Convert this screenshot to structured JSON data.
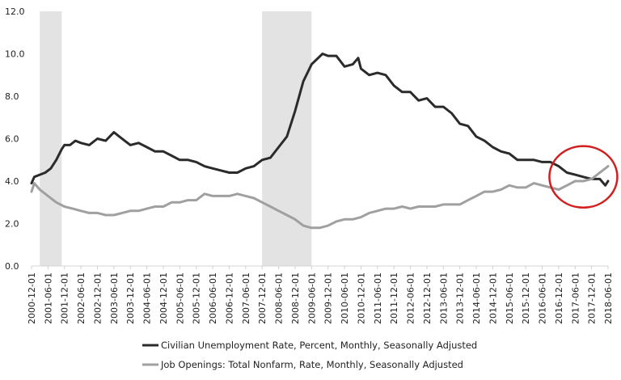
{
  "chart_data": {
    "type": "line",
    "title": "",
    "xlabel": "",
    "ylabel": "",
    "ylim": [
      0,
      12
    ],
    "yticks": [
      "0.0",
      "2.0",
      "4.0",
      "6.0",
      "8.0",
      "10.0",
      "12.0"
    ],
    "xlim": [
      "2000-12-01",
      "2018-06-01"
    ],
    "xticks": [
      "2000-12-01",
      "2001-06-01",
      "2001-12-01",
      "2002-06-01",
      "2002-12-01",
      "2003-06-01",
      "2003-12-01",
      "2004-06-01",
      "2004-12-01",
      "2005-06-01",
      "2005-12-01",
      "2006-06-01",
      "2006-12-01",
      "2007-06-01",
      "2007-12-01",
      "2008-06-01",
      "2008-12-01",
      "2009-06-01",
      "2009-12-01",
      "2010-06-01",
      "2010-12-01",
      "2011-06-01",
      "2011-12-01",
      "2012-06-01",
      "2012-12-01",
      "2013-06-01",
      "2013-12-01",
      "2014-06-01",
      "2014-12-01",
      "2015-06-01",
      "2015-12-01",
      "2016-06-01",
      "2016-12-01",
      "2017-06-01",
      "2017-12-01",
      "2018-06-01"
    ],
    "grid": false,
    "legend_position": "bottom",
    "recessions": [
      {
        "start": "2001-03-01",
        "end": "2001-11-01"
      },
      {
        "start": "2007-12-01",
        "end": "2009-06-01"
      }
    ],
    "annotation": {
      "type": "circle",
      "center": [
        "2017-09-01",
        4.2
      ],
      "color": "#d11f1f"
    },
    "series": [
      {
        "name": "Civilian Unemployment Rate, Percent, Monthly, Seasonally Adjusted",
        "color": "#2b2b2b",
        "points": [
          [
            "2000-12-01",
            3.9
          ],
          [
            "2001-01-01",
            4.2
          ],
          [
            "2001-03-01",
            4.3
          ],
          [
            "2001-05-01",
            4.4
          ],
          [
            "2001-07-01",
            4.6
          ],
          [
            "2001-09-01",
            5.0
          ],
          [
            "2001-11-01",
            5.5
          ],
          [
            "2001-12-01",
            5.7
          ],
          [
            "2002-02-01",
            5.7
          ],
          [
            "2002-04-01",
            5.9
          ],
          [
            "2002-06-01",
            5.8
          ],
          [
            "2002-09-01",
            5.7
          ],
          [
            "2002-12-01",
            6.0
          ],
          [
            "2003-03-01",
            5.9
          ],
          [
            "2003-06-01",
            6.3
          ],
          [
            "2003-08-01",
            6.1
          ],
          [
            "2003-12-01",
            5.7
          ],
          [
            "2004-03-01",
            5.8
          ],
          [
            "2004-06-01",
            5.6
          ],
          [
            "2004-09-01",
            5.4
          ],
          [
            "2004-12-01",
            5.4
          ],
          [
            "2005-03-01",
            5.2
          ],
          [
            "2005-06-01",
            5.0
          ],
          [
            "2005-09-01",
            5.0
          ],
          [
            "2005-12-01",
            4.9
          ],
          [
            "2006-03-01",
            4.7
          ],
          [
            "2006-06-01",
            4.6
          ],
          [
            "2006-09-01",
            4.5
          ],
          [
            "2006-12-01",
            4.4
          ],
          [
            "2007-03-01",
            4.4
          ],
          [
            "2007-06-01",
            4.6
          ],
          [
            "2007-09-01",
            4.7
          ],
          [
            "2007-12-01",
            5.0
          ],
          [
            "2008-03-01",
            5.1
          ],
          [
            "2008-06-01",
            5.6
          ],
          [
            "2008-09-01",
            6.1
          ],
          [
            "2008-12-01",
            7.3
          ],
          [
            "2009-03-01",
            8.7
          ],
          [
            "2009-06-01",
            9.5
          ],
          [
            "2009-10-01",
            10.0
          ],
          [
            "2009-12-01",
            9.9
          ],
          [
            "2010-03-01",
            9.9
          ],
          [
            "2010-06-01",
            9.4
          ],
          [
            "2010-09-01",
            9.5
          ],
          [
            "2010-11-01",
            9.8
          ],
          [
            "2010-12-01",
            9.3
          ],
          [
            "2011-03-01",
            9.0
          ],
          [
            "2011-06-01",
            9.1
          ],
          [
            "2011-09-01",
            9.0
          ],
          [
            "2011-12-01",
            8.5
          ],
          [
            "2012-03-01",
            8.2
          ],
          [
            "2012-06-01",
            8.2
          ],
          [
            "2012-09-01",
            7.8
          ],
          [
            "2012-12-01",
            7.9
          ],
          [
            "2013-03-01",
            7.5
          ],
          [
            "2013-06-01",
            7.5
          ],
          [
            "2013-09-01",
            7.2
          ],
          [
            "2013-12-01",
            6.7
          ],
          [
            "2014-03-01",
            6.6
          ],
          [
            "2014-06-01",
            6.1
          ],
          [
            "2014-09-01",
            5.9
          ],
          [
            "2014-12-01",
            5.6
          ],
          [
            "2015-03-01",
            5.4
          ],
          [
            "2015-06-01",
            5.3
          ],
          [
            "2015-09-01",
            5.0
          ],
          [
            "2015-12-01",
            5.0
          ],
          [
            "2016-03-01",
            5.0
          ],
          [
            "2016-06-01",
            4.9
          ],
          [
            "2016-09-01",
            4.9
          ],
          [
            "2016-12-01",
            4.7
          ],
          [
            "2017-03-01",
            4.4
          ],
          [
            "2017-06-01",
            4.3
          ],
          [
            "2017-09-01",
            4.2
          ],
          [
            "2017-12-01",
            4.1
          ],
          [
            "2018-03-01",
            4.1
          ],
          [
            "2018-05-01",
            3.8
          ],
          [
            "2018-06-01",
            4.0
          ]
        ]
      },
      {
        "name": "Job Openings: Total Nonfarm, Rate, Monthly, Seasonally Adjusted",
        "color": "#a0a0a0",
        "points": [
          [
            "2000-12-01",
            3.5
          ],
          [
            "2001-01-01",
            3.9
          ],
          [
            "2001-03-01",
            3.6
          ],
          [
            "2001-06-01",
            3.3
          ],
          [
            "2001-09-01",
            3.0
          ],
          [
            "2001-12-01",
            2.8
          ],
          [
            "2002-03-01",
            2.7
          ],
          [
            "2002-06-01",
            2.6
          ],
          [
            "2002-09-01",
            2.5
          ],
          [
            "2002-12-01",
            2.5
          ],
          [
            "2003-03-01",
            2.4
          ],
          [
            "2003-06-01",
            2.4
          ],
          [
            "2003-09-01",
            2.5
          ],
          [
            "2003-12-01",
            2.6
          ],
          [
            "2004-03-01",
            2.6
          ],
          [
            "2004-06-01",
            2.7
          ],
          [
            "2004-09-01",
            2.8
          ],
          [
            "2004-12-01",
            2.8
          ],
          [
            "2005-03-01",
            3.0
          ],
          [
            "2005-06-01",
            3.0
          ],
          [
            "2005-09-01",
            3.1
          ],
          [
            "2005-12-01",
            3.1
          ],
          [
            "2006-03-01",
            3.4
          ],
          [
            "2006-06-01",
            3.3
          ],
          [
            "2006-09-01",
            3.3
          ],
          [
            "2006-12-01",
            3.3
          ],
          [
            "2007-03-01",
            3.4
          ],
          [
            "2007-06-01",
            3.3
          ],
          [
            "2007-09-01",
            3.2
          ],
          [
            "2007-12-01",
            3.0
          ],
          [
            "2008-03-01",
            2.8
          ],
          [
            "2008-06-01",
            2.6
          ],
          [
            "2008-09-01",
            2.4
          ],
          [
            "2008-12-01",
            2.2
          ],
          [
            "2009-03-01",
            1.9
          ],
          [
            "2009-06-01",
            1.8
          ],
          [
            "2009-09-01",
            1.8
          ],
          [
            "2009-12-01",
            1.9
          ],
          [
            "2010-03-01",
            2.1
          ],
          [
            "2010-06-01",
            2.2
          ],
          [
            "2010-09-01",
            2.2
          ],
          [
            "2010-12-01",
            2.3
          ],
          [
            "2011-03-01",
            2.5
          ],
          [
            "2011-06-01",
            2.6
          ],
          [
            "2011-09-01",
            2.7
          ],
          [
            "2011-12-01",
            2.7
          ],
          [
            "2012-03-01",
            2.8
          ],
          [
            "2012-06-01",
            2.7
          ],
          [
            "2012-09-01",
            2.8
          ],
          [
            "2012-12-01",
            2.8
          ],
          [
            "2013-03-01",
            2.8
          ],
          [
            "2013-06-01",
            2.9
          ],
          [
            "2013-09-01",
            2.9
          ],
          [
            "2013-12-01",
            2.9
          ],
          [
            "2014-03-01",
            3.1
          ],
          [
            "2014-06-01",
            3.3
          ],
          [
            "2014-09-01",
            3.5
          ],
          [
            "2014-12-01",
            3.5
          ],
          [
            "2015-03-01",
            3.6
          ],
          [
            "2015-06-01",
            3.8
          ],
          [
            "2015-09-01",
            3.7
          ],
          [
            "2015-12-01",
            3.7
          ],
          [
            "2016-03-01",
            3.9
          ],
          [
            "2016-06-01",
            3.8
          ],
          [
            "2016-09-01",
            3.7
          ],
          [
            "2016-12-01",
            3.6
          ],
          [
            "2017-03-01",
            3.8
          ],
          [
            "2017-06-01",
            4.0
          ],
          [
            "2017-09-01",
            4.0
          ],
          [
            "2017-12-01",
            4.1
          ],
          [
            "2018-03-01",
            4.4
          ],
          [
            "2018-05-01",
            4.6
          ],
          [
            "2018-06-01",
            4.7
          ]
        ]
      }
    ]
  }
}
